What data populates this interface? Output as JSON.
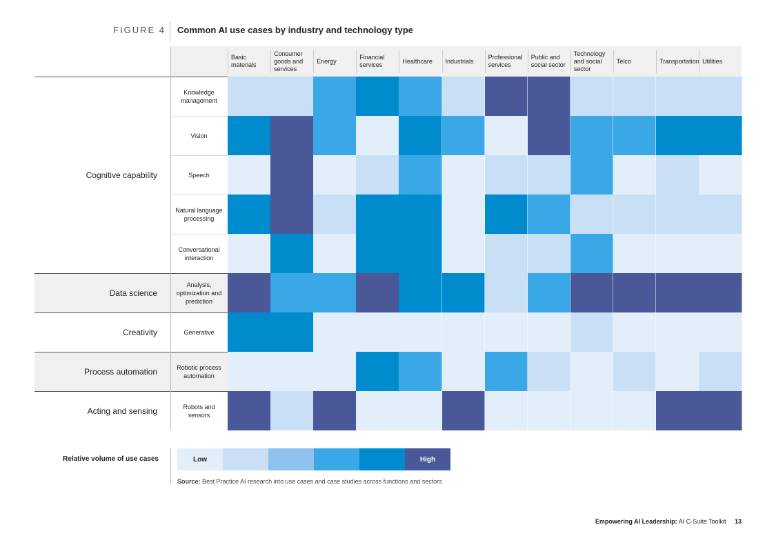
{
  "figure_label": "FIGURE 4",
  "chart_data": {
    "type": "heatmap",
    "title": "Common AI use cases by industry and technology type",
    "columns": [
      "Basic materials",
      "Consumer goods and services",
      "Energy",
      "Financial services",
      "Healthcare",
      "Industrials",
      "Professional services",
      "Public and social sector",
      "Technology and social sector",
      "Telco",
      "Transportation",
      "Utilities"
    ],
    "groups": [
      {
        "name": "Cognitive capability",
        "rows": [
          {
            "name": "Knowledge management",
            "values": [
              2,
              2,
              4,
              5,
              4,
              2,
              6,
              6,
              2,
              2,
              2,
              2
            ]
          },
          {
            "name": "Vision",
            "values": [
              5,
              6,
              4,
              1,
              5,
              4,
              1,
              6,
              4,
              4,
              5,
              5
            ]
          },
          {
            "name": "Speech",
            "values": [
              1,
              6,
              1,
              2,
              4,
              1,
              2,
              2,
              4,
              1,
              2,
              1
            ]
          },
          {
            "name": "Natural language processing",
            "values": [
              5,
              6,
              2,
              5,
              5,
              1,
              5,
              4,
              2,
              2,
              2,
              2
            ]
          },
          {
            "name": "Conversational interaction",
            "values": [
              1,
              5,
              1,
              5,
              5,
              1,
              2,
              2,
              4,
              1,
              1,
              1
            ]
          }
        ]
      },
      {
        "name": "Data science",
        "rows": [
          {
            "name": "Analysis, optimization and prediction",
            "values": [
              6,
              4,
              4,
              6,
              5,
              5,
              2,
              4,
              6,
              6,
              6,
              6
            ]
          }
        ]
      },
      {
        "name": "Creativity",
        "rows": [
          {
            "name": "Generative",
            "values": [
              5,
              5,
              1,
              1,
              1,
              1,
              1,
              1,
              2,
              1,
              1,
              1
            ]
          }
        ]
      },
      {
        "name": "Process automation",
        "rows": [
          {
            "name": "Robotic process automation",
            "values": [
              1,
              1,
              1,
              5,
              4,
              1,
              4,
              2,
              1,
              2,
              1,
              2
            ]
          }
        ]
      },
      {
        "name": "Acting and sensing",
        "rows": [
          {
            "name": "Robots and sensors",
            "values": [
              6,
              2,
              6,
              1,
              1,
              6,
              1,
              1,
              1,
              1,
              6,
              6
            ]
          }
        ]
      }
    ],
    "scale": {
      "title": "Relative volume of use cases",
      "levels": [
        1,
        2,
        3,
        4,
        5,
        6
      ],
      "low_label": "Low",
      "high_label": "High",
      "colors": [
        "#e2eefa",
        "#c8dff5",
        "#8cc2ed",
        "#3aa7e6",
        "#008bcf",
        "#4a5899"
      ]
    }
  },
  "source": {
    "label": "Source:",
    "text": "Best Practice AI research into use cases and case studies across functions and sectors"
  },
  "footer": {
    "bold": "Empowering AI Leadership:",
    "rest": "AI C-Suite Toolkit",
    "page": "13"
  }
}
